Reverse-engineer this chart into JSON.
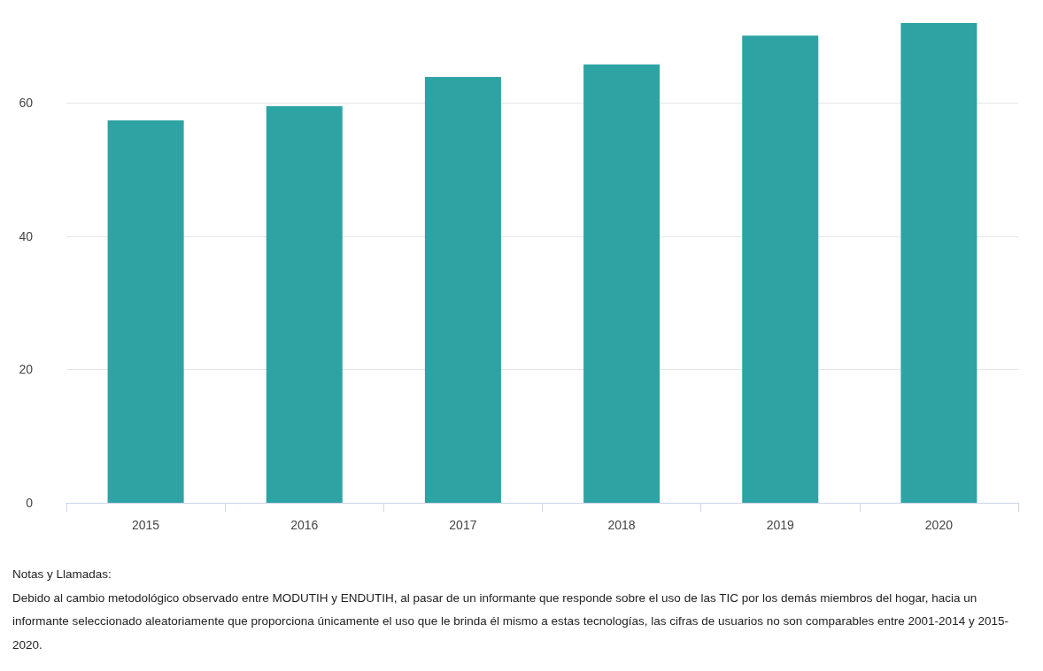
{
  "chart_data": {
    "type": "bar",
    "categories": [
      "2015",
      "2016",
      "2017",
      "2018",
      "2019",
      "2020"
    ],
    "values": [
      57.4,
      59.5,
      63.9,
      65.8,
      70.1,
      72.0
    ],
    "color": "#2ea3a3",
    "ylim": [
      0,
      72
    ],
    "yticks": [
      0,
      20,
      40,
      60
    ],
    "grid": "y",
    "annotations": [
      "Notas y Llamadas:",
      "Debido al cambio metodológico observado entre MODUTIH y ENDUTIH, al pasar de un informante que responde sobre el uso de las TIC por los demás miembros del hogar, hacia un informante seleccionado aleatoriamente que proporciona únicamente el uso que le brinda él mismo a estas tecnologías, las cifras de usuarios no son comparables entre 2001-2014 y 2015-2020."
    ]
  }
}
